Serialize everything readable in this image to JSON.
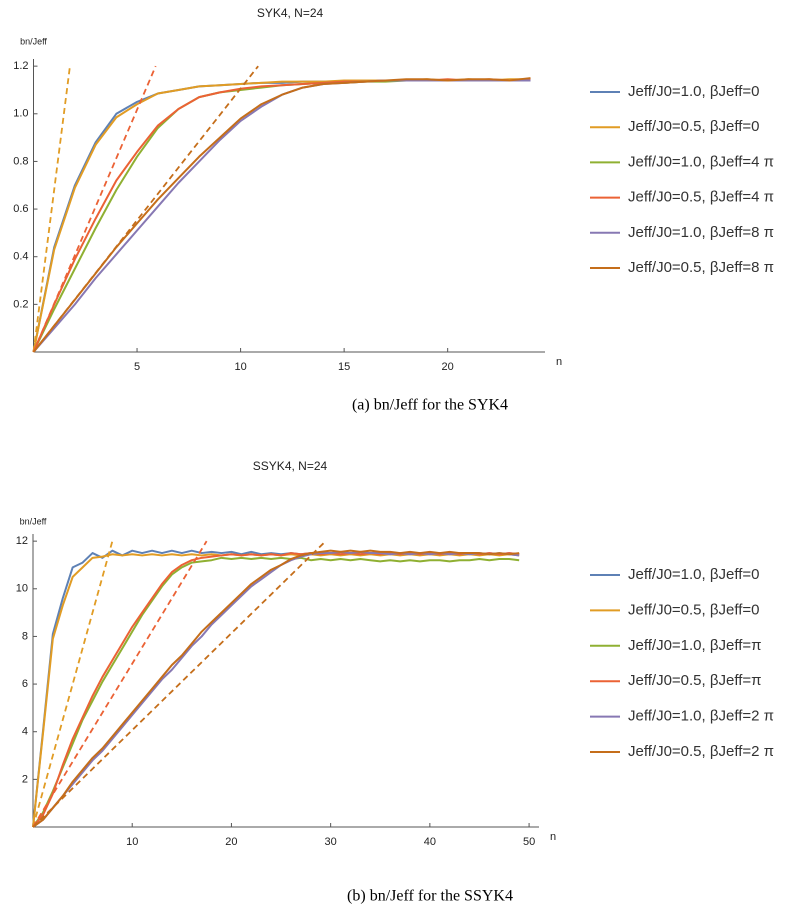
{
  "chart_data": [
    {
      "type": "line",
      "title": "SYK4, N=24",
      "y_label": "bn/Jeff",
      "x_label": "n",
      "caption": "(a) bn/Jeff for the SYK4",
      "xlim": [
        0,
        24.7
      ],
      "ylim": [
        0,
        1.23
      ],
      "xticks": [
        5,
        10,
        15,
        20
      ],
      "yticks": [
        0.2,
        0.4,
        0.6,
        0.8,
        {
          "value": 1,
          "label": "1.0"
        },
        1.2
      ],
      "x": [
        0,
        1,
        2,
        3,
        4,
        5,
        6,
        7,
        8,
        9,
        10,
        11,
        12,
        13,
        14,
        15,
        16,
        17,
        18,
        19,
        20,
        21,
        22,
        23,
        24
      ],
      "series": [
        {
          "name": "Jeff/J0=1.0, βJeff=0",
          "color": "#5e81b5",
          "values": [
            0,
            0.44,
            0.7,
            0.88,
            1.0,
            1.05,
            1.085,
            1.1,
            1.115,
            1.12,
            1.125,
            1.13,
            1.13,
            1.135,
            1.135,
            1.135,
            1.14,
            1.14,
            1.14,
            1.14,
            1.14,
            1.14,
            1.14,
            1.14,
            1.14
          ]
        },
        {
          "name": "Jeff/J0=0.5, βJeff=0",
          "color": "#e19c24",
          "values": [
            0,
            0.43,
            0.69,
            0.87,
            0.985,
            1.04,
            1.085,
            1.1,
            1.115,
            1.12,
            1.125,
            1.13,
            1.135,
            1.135,
            1.135,
            1.14,
            1.14,
            1.14,
            1.14,
            1.145,
            1.14,
            1.145,
            1.14,
            1.145,
            1.145
          ]
        },
        {
          "name": "Jeff/J0=1.0, βJeff=4 π",
          "color": "#8fb032",
          "values": [
            0,
            0.18,
            0.35,
            0.52,
            0.68,
            0.82,
            0.94,
            1.02,
            1.07,
            1.09,
            1.1,
            1.11,
            1.12,
            1.125,
            1.13,
            1.13,
            1.135,
            1.135,
            1.14,
            1.14,
            1.14,
            1.14,
            1.14,
            1.14,
            1.14
          ]
        },
        {
          "name": "Jeff/J0=0.5, βJeff=4 π",
          "color": "#eb6235",
          "values": [
            0,
            0.2,
            0.39,
            0.56,
            0.72,
            0.84,
            0.95,
            1.02,
            1.07,
            1.09,
            1.105,
            1.115,
            1.12,
            1.125,
            1.13,
            1.135,
            1.135,
            1.14,
            1.14,
            1.14,
            1.145,
            1.14,
            1.145,
            1.14,
            1.145
          ]
        },
        {
          "name": "Jeff/J0=1.0, βJeff=8 π",
          "color": "#8778b3",
          "values": [
            0,
            0.1,
            0.2,
            0.31,
            0.41,
            0.51,
            0.61,
            0.71,
            0.8,
            0.89,
            0.97,
            1.03,
            1.08,
            1.11,
            1.125,
            1.13,
            1.135,
            1.14,
            1.14,
            1.14,
            1.14,
            1.14,
            1.14,
            1.14,
            1.14
          ]
        },
        {
          "name": "Jeff/J0=0.5, βJeff=8 π",
          "color": "#c56e1a",
          "values": [
            0,
            0.11,
            0.22,
            0.33,
            0.44,
            0.54,
            0.64,
            0.73,
            0.82,
            0.9,
            0.98,
            1.04,
            1.08,
            1.11,
            1.125,
            1.13,
            1.135,
            1.14,
            1.145,
            1.145,
            1.14,
            1.145,
            1.145,
            1.14,
            1.15
          ]
        }
      ],
      "reference_lines": [
        {
          "color": "#e19c24",
          "dashed": true,
          "x": [
            0,
            1.76
          ],
          "values": [
            0,
            1.2
          ]
        },
        {
          "color": "#eb6235",
          "dashed": true,
          "x": [
            0,
            5.9
          ],
          "values": [
            0,
            1.2
          ]
        },
        {
          "color": "#c56e1a",
          "dashed": true,
          "x": [
            0,
            10.85
          ],
          "values": [
            0,
            1.2
          ]
        }
      ]
    },
    {
      "type": "line",
      "title": "SSYK4, N=24",
      "y_label": "bn/Jeff",
      "x_label": "n",
      "caption": "(b) bn/Jeff for the SSYK4",
      "xlim": [
        0,
        51
      ],
      "ylim": [
        0,
        12.3
      ],
      "xticks": [
        10,
        20,
        30,
        40,
        50
      ],
      "yticks": [
        2,
        4,
        6,
        8,
        10,
        12
      ],
      "x": [
        0,
        1,
        2,
        3,
        4,
        5,
        6,
        7,
        8,
        9,
        10,
        11,
        12,
        13,
        14,
        15,
        16,
        17,
        18,
        19,
        20,
        21,
        22,
        23,
        24,
        25,
        26,
        27,
        28,
        29,
        30,
        31,
        32,
        33,
        34,
        35,
        36,
        37,
        38,
        39,
        40,
        41,
        42,
        43,
        44,
        45,
        46,
        47,
        48,
        49
      ],
      "series": [
        {
          "name": "Jeff/J0=1.0, βJeff=0",
          "color": "#5e81b5",
          "values": [
            0,
            4.0,
            8.1,
            9.6,
            10.9,
            11.1,
            11.5,
            11.3,
            11.6,
            11.4,
            11.6,
            11.5,
            11.6,
            11.5,
            11.6,
            11.5,
            11.6,
            11.5,
            11.55,
            11.5,
            11.55,
            11.45,
            11.55,
            11.45,
            11.5,
            11.45,
            11.5,
            11.45,
            11.5,
            11.45,
            11.5,
            11.45,
            11.5,
            11.45,
            11.5,
            11.45,
            11.5,
            11.45,
            11.5,
            11.45,
            11.5,
            11.45,
            11.5,
            11.45,
            11.5,
            11.45,
            11.5,
            11.45,
            11.5,
            11.45
          ]
        },
        {
          "name": "Jeff/J0=0.5, βJeff=0",
          "color": "#e19c24",
          "values": [
            0,
            3.9,
            7.9,
            9.3,
            10.5,
            10.9,
            11.3,
            11.35,
            11.45,
            11.4,
            11.45,
            11.4,
            11.45,
            11.4,
            11.45,
            11.4,
            11.45,
            11.4,
            11.45,
            11.4,
            11.45,
            11.4,
            11.45,
            11.4,
            11.45,
            11.4,
            11.45,
            11.4,
            11.45,
            11.4,
            11.45,
            11.4,
            11.45,
            11.4,
            11.45,
            11.4,
            11.45,
            11.4,
            11.45,
            11.4,
            11.45,
            11.4,
            11.45,
            11.4,
            11.45,
            11.4,
            11.45,
            11.4,
            11.45,
            11.4
          ]
        },
        {
          "name": "Jeff/J0=1.0, βJeff=π",
          "color": "#8fb032",
          "values": [
            0,
            0.6,
            1.5,
            2.5,
            3.5,
            4.5,
            5.3,
            6.1,
            6.8,
            7.5,
            8.2,
            8.9,
            9.5,
            10.1,
            10.6,
            10.9,
            11.1,
            11.15,
            11.2,
            11.3,
            11.25,
            11.3,
            11.25,
            11.3,
            11.25,
            11.3,
            11.25,
            11.3,
            11.2,
            11.25,
            11.2,
            11.25,
            11.2,
            11.25,
            11.2,
            11.15,
            11.2,
            11.15,
            11.2,
            11.15,
            11.2,
            11.2,
            11.15,
            11.2,
            11.2,
            11.25,
            11.2,
            11.25,
            11.25,
            11.2
          ]
        },
        {
          "name": "Jeff/J0=0.5, βJeff=π",
          "color": "#eb6235",
          "values": [
            0,
            0.5,
            1.4,
            2.6,
            3.7,
            4.6,
            5.5,
            6.3,
            7.0,
            7.7,
            8.4,
            9.0,
            9.6,
            10.2,
            10.7,
            11.0,
            11.2,
            11.3,
            11.35,
            11.4,
            11.45,
            11.4,
            11.45,
            11.4,
            11.45,
            11.4,
            11.5,
            11.45,
            11.5,
            11.45,
            11.5,
            11.45,
            11.5,
            11.45,
            11.5,
            11.45,
            11.5,
            11.45,
            11.5,
            11.45,
            11.5,
            11.45,
            11.5,
            11.45,
            11.5,
            11.45,
            11.5,
            11.45,
            11.5,
            11.45
          ]
        },
        {
          "name": "Jeff/J0=1.0, βJeff=2 π",
          "color": "#8778b3",
          "values": [
            0,
            0.3,
            0.8,
            1.3,
            1.8,
            2.3,
            2.8,
            3.2,
            3.7,
            4.2,
            4.7,
            5.2,
            5.7,
            6.2,
            6.6,
            7.1,
            7.6,
            8.0,
            8.5,
            8.9,
            9.3,
            9.7,
            10.1,
            10.4,
            10.7,
            11.0,
            11.2,
            11.35,
            11.45,
            11.5,
            11.5,
            11.55,
            11.5,
            11.55,
            11.5,
            11.5,
            11.45,
            11.5,
            11.45,
            11.5,
            11.45,
            11.5,
            11.45,
            11.5,
            11.45,
            11.5,
            11.45,
            11.5,
            11.45,
            11.4
          ]
        },
        {
          "name": "Jeff/J0=0.5, βJeff=2 π",
          "color": "#c56e1a",
          "values": [
            0,
            0.3,
            0.8,
            1.3,
            1.9,
            2.4,
            2.9,
            3.3,
            3.8,
            4.3,
            4.8,
            5.3,
            5.8,
            6.3,
            6.8,
            7.2,
            7.7,
            8.2,
            8.6,
            9.0,
            9.4,
            9.8,
            10.2,
            10.5,
            10.8,
            11.0,
            11.25,
            11.4,
            11.5,
            11.55,
            11.6,
            11.55,
            11.6,
            11.55,
            11.6,
            11.55,
            11.55,
            11.5,
            11.55,
            11.5,
            11.55,
            11.5,
            11.55,
            11.5,
            11.5,
            11.5,
            11.45,
            11.5,
            11.45,
            11.5
          ]
        }
      ],
      "reference_lines": [
        {
          "color": "#e19c24",
          "dashed": true,
          "x": [
            0,
            8
          ],
          "values": [
            0,
            12
          ]
        },
        {
          "color": "#eb6235",
          "dashed": true,
          "x": [
            0,
            17.5
          ],
          "values": [
            0,
            12
          ]
        },
        {
          "color": "#c56e1a",
          "dashed": true,
          "x": [
            0,
            29.5
          ],
          "values": [
            0,
            12
          ]
        }
      ]
    }
  ]
}
